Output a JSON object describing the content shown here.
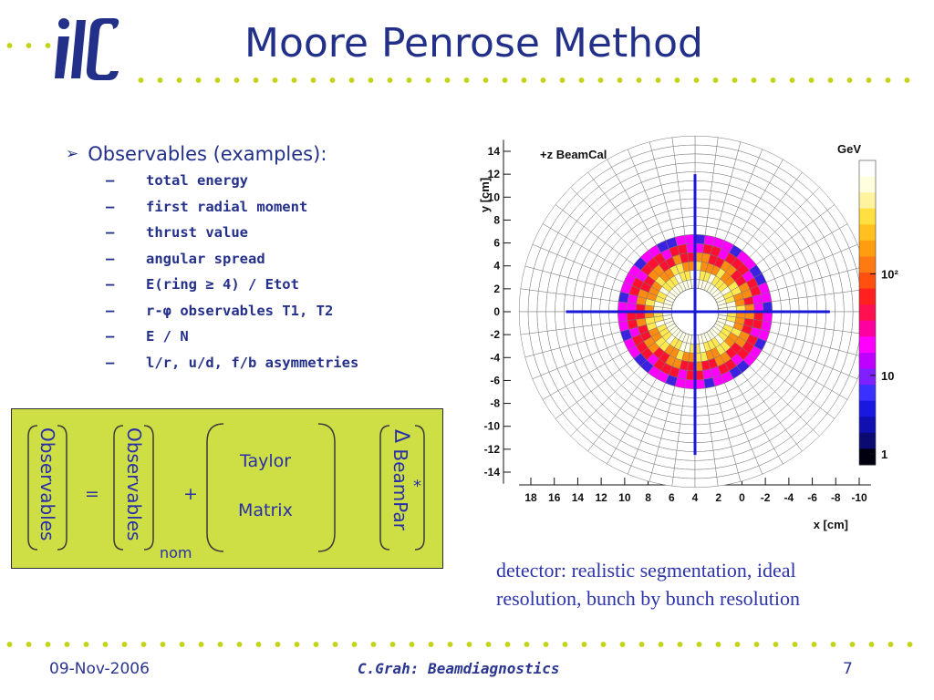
{
  "header": {
    "logo_text": "ilc",
    "title": "Moore Penrose Method"
  },
  "bullets": {
    "main": "Observables (examples):",
    "items": [
      "total energy",
      "first radial moment",
      "thrust value",
      "angular spread",
      "E(ring ≥ 4) / Etot",
      "r-φ observables T1, T2",
      "E / N",
      "l/r, u/d, f/b asymmetries"
    ]
  },
  "equation": {
    "lhs": "Observables",
    "equals": "=",
    "obs_nom": "Observables",
    "nom_subscript": "nom",
    "plus": "+",
    "taylor": "Taylor",
    "matrix": "Matrix",
    "delta": "Δ",
    "beampar": "BeamPar",
    "star": "*"
  },
  "chart_data": {
    "type": "heatmap",
    "title": "+z BeamCal",
    "xlabel": "x [cm]",
    "ylabel": "y [cm]",
    "x_ticks": [
      18,
      16,
      14,
      12,
      10,
      8,
      6,
      4,
      2,
      0,
      -2,
      -4,
      -6,
      -8,
      -10
    ],
    "y_ticks": [
      14,
      12,
      10,
      8,
      6,
      4,
      2,
      0,
      -2,
      -4,
      -6,
      -8,
      -10,
      -12,
      -14
    ],
    "xlim": [
      18,
      -10
    ],
    "ylim": [
      -14,
      14
    ],
    "z_label": "GeV",
    "z_scale": "log",
    "z_ticks": [
      "10²",
      "10",
      "1"
    ],
    "detector": {
      "inner_radius_cm": 2,
      "outer_radius_cm": 15,
      "rings": 17,
      "sectors": 48,
      "center_cm": [
        4,
        0
      ]
    },
    "energy_region": {
      "center_cm": [
        4,
        0
      ],
      "outer_radius_cm": 7
    },
    "crosshair": {
      "x_cm": 4,
      "y_cm": 0
    }
  },
  "caption": {
    "line1": "detector: realistic segmentation, ideal",
    "line2": "resolution, bunch by bunch resolution"
  },
  "footer": {
    "date": "09-Nov-2006",
    "title": "C.Grah: Beamdiagnostics",
    "page": "7"
  },
  "colors": {
    "title": "#22308a",
    "bullet_text": "#24308a",
    "dot": "#c3d317",
    "box": "#cddf45",
    "box_text": "#2a2fa8",
    "crosshair": "#1a1ad6"
  }
}
